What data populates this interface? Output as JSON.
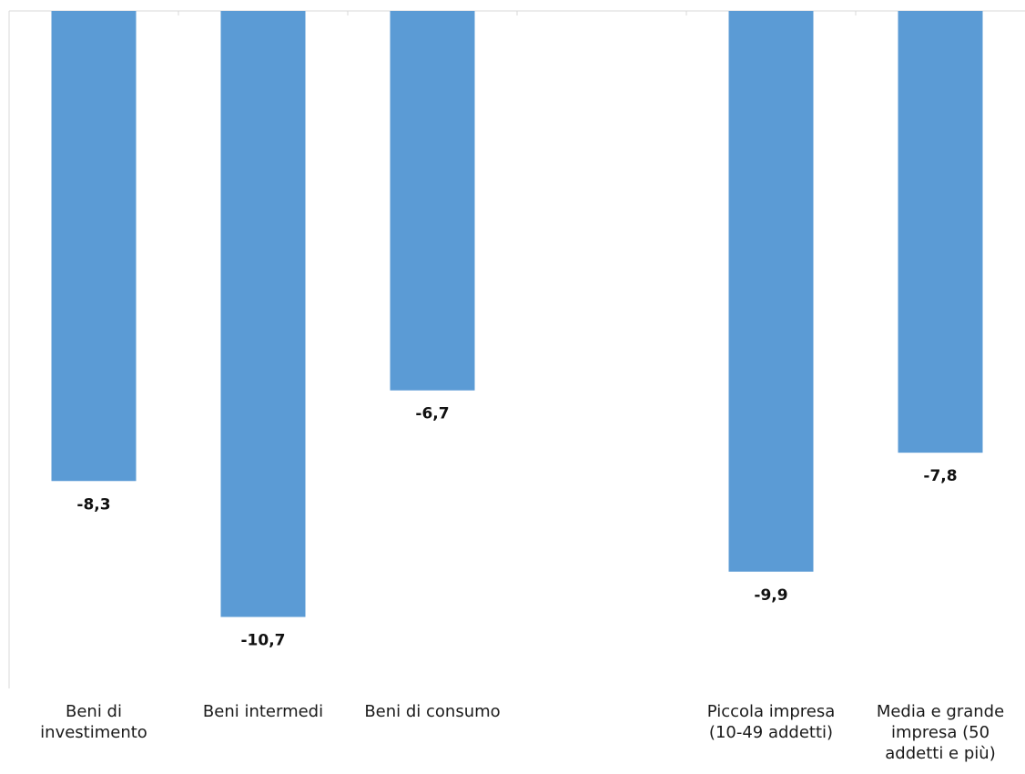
{
  "chart_data": {
    "type": "bar",
    "categories": [
      "Beni di\ninvestimento",
      "Beni intermedi",
      "Beni di consumo",
      "",
      "Piccola impresa\n(10-49 addetti)",
      "Media e grande\nimpresa (50\naddetti e più)"
    ],
    "values": [
      -8.3,
      -10.7,
      -6.7,
      null,
      -9.9,
      -7.8
    ],
    "value_labels": [
      "-8,3",
      "-10,7",
      "-6,7",
      "",
      "-9,9",
      "-7,8"
    ],
    "ylim": [
      -12,
      0
    ],
    "grid": false,
    "colors": {
      "bar": "#5b9bd5",
      "axis": "#d9d9d9"
    }
  }
}
